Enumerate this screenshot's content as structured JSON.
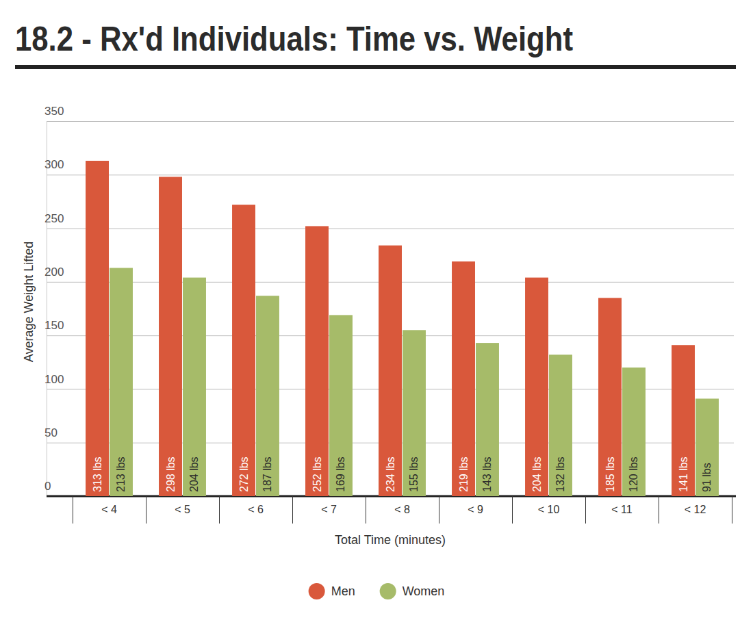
{
  "chart_data": {
    "type": "bar",
    "title": "18.2 - Rx'd Individuals: Time vs. Weight",
    "x_label": "Total Time (minutes)",
    "y_label": "Average Weight Lifted",
    "categories": [
      "< 4",
      "< 5",
      "< 6",
      "< 7",
      "< 8",
      "< 9",
      "< 10",
      "< 11",
      "< 12"
    ],
    "series": [
      {
        "name": "Men",
        "color": "#d9583b",
        "values": [
          313,
          298,
          272,
          252,
          234,
          219,
          204,
          185,
          141
        ],
        "value_labels": [
          "313 lbs",
          "298 lbs",
          "272 lbs",
          "252 lbs",
          "234 lbs",
          "219 lbs",
          "204 lbs",
          "185 lbs",
          "141 lbs"
        ]
      },
      {
        "name": "Women",
        "color": "#a6bb69",
        "values": [
          213,
          204,
          187,
          169,
          155,
          143,
          132,
          120,
          91
        ],
        "value_labels": [
          "213 lbs",
          "204 lbs",
          "187 lbs",
          "169 lbs",
          "155 lbs",
          "143 lbs",
          "132 lbs",
          "120 lbs",
          "91 lbs"
        ]
      }
    ],
    "ylim": [
      0,
      350
    ],
    "yticks": [
      0,
      50,
      100,
      150,
      200,
      250,
      300,
      350
    ],
    "grid": true,
    "data_labels": true,
    "legend": "bottom"
  }
}
